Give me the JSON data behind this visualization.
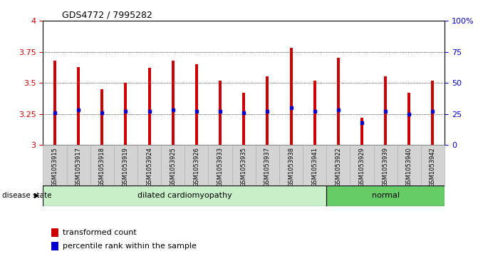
{
  "title": "GDS4772 / 7995282",
  "samples": [
    "GSM1053915",
    "GSM1053917",
    "GSM1053918",
    "GSM1053919",
    "GSM1053924",
    "GSM1053925",
    "GSM1053926",
    "GSM1053933",
    "GSM1053935",
    "GSM1053937",
    "GSM1053938",
    "GSM1053941",
    "GSM1053922",
    "GSM1053929",
    "GSM1053939",
    "GSM1053940",
    "GSM1053942"
  ],
  "bar_values": [
    3.68,
    3.63,
    3.45,
    3.5,
    3.62,
    3.68,
    3.65,
    3.52,
    3.42,
    3.55,
    3.78,
    3.52,
    3.7,
    3.22,
    3.55,
    3.42,
    3.52
  ],
  "percentile_values": [
    3.26,
    3.28,
    3.26,
    3.27,
    3.27,
    3.28,
    3.27,
    3.27,
    3.26,
    3.27,
    3.3,
    3.27,
    3.28,
    3.18,
    3.27,
    3.25,
    3.27
  ],
  "disease_state": [
    "dilated cardiomyopathy",
    "dilated cardiomyopathy",
    "dilated cardiomyopathy",
    "dilated cardiomyopathy",
    "dilated cardiomyopathy",
    "dilated cardiomyopathy",
    "dilated cardiomyopathy",
    "dilated cardiomyopathy",
    "dilated cardiomyopathy",
    "dilated cardiomyopathy",
    "dilated cardiomyopathy",
    "dilated cardiomyopathy",
    "normal",
    "normal",
    "normal",
    "normal",
    "normal"
  ],
  "ylim_left": [
    3.0,
    4.0
  ],
  "ylim_right": [
    0,
    100
  ],
  "yticks_left": [
    3.0,
    3.25,
    3.5,
    3.75,
    4.0
  ],
  "ytick_labels_left": [
    "3",
    "3.25",
    "3.5",
    "3.75",
    "4"
  ],
  "yticks_right": [
    0,
    25,
    50,
    75,
    100
  ],
  "ytick_labels_right": [
    "0",
    "25",
    "50",
    "75",
    "100%"
  ],
  "bar_color": "#cc0000",
  "percentile_color": "#0000cc",
  "bar_width": 0.12,
  "dilated_color": "#c8f0c8",
  "normal_color": "#66cc66",
  "grid_color": "#000000",
  "background_plot": "#ffffff",
  "background_label": "#d3d3d3",
  "legend_bar_label": "transformed count",
  "legend_pct_label": "percentile rank within the sample",
  "disease_label": "disease state"
}
